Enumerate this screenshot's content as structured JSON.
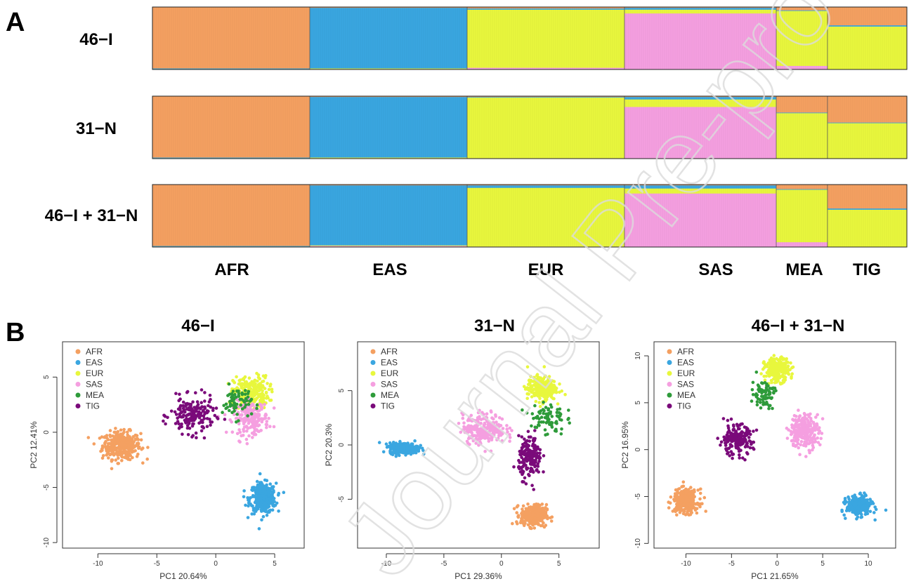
{
  "panel_a": {
    "letter": "A",
    "group_labels": [
      "AFR",
      "EAS",
      "EUR",
      "SAS",
      "MEA",
      "TIG"
    ],
    "rows": [
      {
        "label": "46−I"
      },
      {
        "label": "31−N"
      },
      {
        "label": "46−I + 31−N"
      }
    ]
  },
  "panel_b": {
    "letter": "B",
    "legend": [
      "AFR",
      "EAS",
      "EUR",
      "SAS",
      "MEA",
      "TIG"
    ]
  },
  "watermark": "Journal Pre-proof",
  "colors": {
    "AFR": "#f4a061",
    "EAS": "#3aa6e0",
    "EUR": "#e8f73d",
    "SAS": "#f59fe0",
    "MEA": "#2e9b3a",
    "TIG": "#7a0a7a"
  },
  "chart_data": [
    {
      "type": "bar",
      "subtype": "stacked-admixture",
      "title": "46−I",
      "categories": [
        "AFR",
        "EAS",
        "EUR",
        "SAS",
        "MEA",
        "TIG"
      ],
      "series": [
        {
          "name": "AFR",
          "values": [
            0.98,
            0.01,
            0.02,
            0.01,
            0.05,
            0.29
          ]
        },
        {
          "name": "EAS",
          "values": [
            0.01,
            0.97,
            0.02,
            0.03,
            0.01,
            0.02
          ]
        },
        {
          "name": "EUR",
          "values": [
            0.01,
            0.01,
            0.93,
            0.06,
            0.88,
            0.69
          ]
        },
        {
          "name": "SAS",
          "values": [
            0.0,
            0.01,
            0.03,
            0.9,
            0.06,
            0.0
          ]
        }
      ],
      "ylim": [
        0,
        1
      ]
    },
    {
      "type": "bar",
      "subtype": "stacked-admixture",
      "title": "31−N",
      "categories": [
        "AFR",
        "EAS",
        "EUR",
        "SAS",
        "MEA",
        "TIG"
      ],
      "series": [
        {
          "name": "AFR",
          "values": [
            0.98,
            0.01,
            0.01,
            0.01,
            0.26,
            0.42
          ]
        },
        {
          "name": "EAS",
          "values": [
            0.01,
            0.97,
            0.01,
            0.04,
            0.01,
            0.01
          ]
        },
        {
          "name": "EUR",
          "values": [
            0.01,
            0.01,
            0.97,
            0.12,
            0.73,
            0.57
          ]
        },
        {
          "name": "SAS",
          "values": [
            0.0,
            0.01,
            0.01,
            0.83,
            0.0,
            0.0
          ]
        }
      ],
      "ylim": [
        0,
        1
      ]
    },
    {
      "type": "bar",
      "subtype": "stacked-admixture",
      "title": "46−I + 31−N",
      "categories": [
        "AFR",
        "EAS",
        "EUR",
        "SAS",
        "MEA",
        "TIG"
      ],
      "series": [
        {
          "name": "AFR",
          "values": [
            0.98,
            0.01,
            0.01,
            0.01,
            0.07,
            0.38
          ]
        },
        {
          "name": "EAS",
          "values": [
            0.01,
            0.96,
            0.04,
            0.05,
            0.01,
            0.02
          ]
        },
        {
          "name": "EUR",
          "values": [
            0.01,
            0.01,
            0.94,
            0.08,
            0.84,
            0.6
          ]
        },
        {
          "name": "SAS",
          "values": [
            0.0,
            0.02,
            0.01,
            0.86,
            0.08,
            0.0
          ]
        }
      ],
      "ylim": [
        0,
        1
      ]
    },
    {
      "type": "scatter",
      "title": "46−I",
      "xlabel": "PC1  20.64%",
      "ylabel": "PC2  12.41%",
      "xlim": [
        -13,
        7.5
      ],
      "ylim": [
        -10.5,
        8.2
      ],
      "xticks": [
        -10,
        -5,
        0,
        5
      ],
      "yticks": [
        -10,
        -5,
        0,
        5
      ],
      "legend_position": "top-left",
      "series": [
        {
          "name": "AFR",
          "center": [
            -8,
            -1.2
          ],
          "spread": [
            1.3,
            1.0
          ],
          "n": 350
        },
        {
          "name": "EAS",
          "center": [
            4,
            -6
          ],
          "spread": [
            0.9,
            1.1
          ],
          "n": 350
        },
        {
          "name": "EUR",
          "center": [
            3,
            3.6
          ],
          "spread": [
            1.2,
            1.2
          ],
          "n": 250
        },
        {
          "name": "SAS",
          "center": [
            3,
            1.3
          ],
          "spread": [
            1.2,
            1.2
          ],
          "n": 200
        },
        {
          "name": "MEA",
          "center": [
            1.8,
            2.7
          ],
          "spread": [
            1.0,
            1.2
          ],
          "n": 70
        },
        {
          "name": "TIG",
          "center": [
            -2,
            1.5
          ],
          "spread": [
            1.5,
            1.3
          ],
          "n": 180
        }
      ]
    },
    {
      "type": "scatter",
      "title": "31−N",
      "xlabel": "PC1  29.36%",
      "ylabel": "PC2  20.3%",
      "xlim": [
        -12.5,
        8.5
      ],
      "ylim": [
        -9.5,
        9.5
      ],
      "xticks": [
        -10,
        -5,
        0,
        5
      ],
      "yticks": [
        -5,
        0,
        5
      ],
      "legend_position": "top-left",
      "series": [
        {
          "name": "AFR",
          "center": [
            2.8,
            -6.5
          ],
          "spread": [
            0.9,
            0.8
          ],
          "n": 320
        },
        {
          "name": "EAS",
          "center": [
            -8.5,
            -0.3
          ],
          "spread": [
            1.0,
            0.4
          ],
          "n": 320
        },
        {
          "name": "EUR",
          "center": [
            3.5,
            5.2
          ],
          "spread": [
            1.0,
            0.9
          ],
          "n": 280
        },
        {
          "name": "SAS",
          "center": [
            -1.5,
            1.5
          ],
          "spread": [
            1.5,
            1.1
          ],
          "n": 250
        },
        {
          "name": "MEA",
          "center": [
            4,
            2.5
          ],
          "spread": [
            1.2,
            1.3
          ],
          "n": 80
        },
        {
          "name": "TIG",
          "center": [
            2.5,
            -1.2
          ],
          "spread": [
            0.8,
            1.5
          ],
          "n": 180
        }
      ]
    },
    {
      "type": "scatter",
      "title": "46−I + 31−N",
      "xlabel": "PC1  21.65%",
      "ylabel": "PC2  16.95%",
      "xlim": [
        -13.5,
        13
      ],
      "ylim": [
        -10.5,
        11.5
      ],
      "xticks": [
        -10,
        -5,
        0,
        5,
        10
      ],
      "yticks": [
        -10,
        -5,
        0,
        5,
        10
      ],
      "legend_position": "top-left",
      "series": [
        {
          "name": "AFR",
          "center": [
            -10,
            -5.5
          ],
          "spread": [
            1.1,
            1.0
          ],
          "n": 320
        },
        {
          "name": "EAS",
          "center": [
            9,
            -6
          ],
          "spread": [
            1.1,
            0.8
          ],
          "n": 320
        },
        {
          "name": "EUR",
          "center": [
            0,
            8.5
          ],
          "spread": [
            1.1,
            1.0
          ],
          "n": 250
        },
        {
          "name": "SAS",
          "center": [
            3,
            2
          ],
          "spread": [
            1.3,
            1.5
          ],
          "n": 250
        },
        {
          "name": "MEA",
          "center": [
            -1.5,
            6
          ],
          "spread": [
            1.0,
            1.2
          ],
          "n": 80
        },
        {
          "name": "TIG",
          "center": [
            -4.5,
            1
          ],
          "spread": [
            1.5,
            1.3
          ],
          "n": 180
        }
      ]
    }
  ]
}
